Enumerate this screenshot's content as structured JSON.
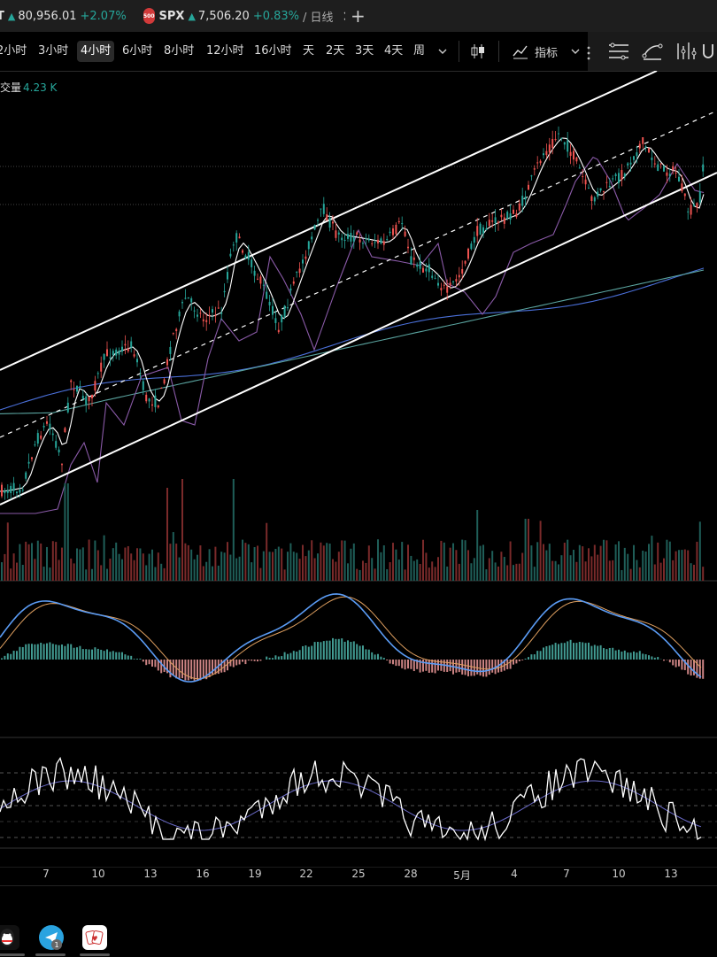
{
  "tabs": [
    {
      "symbol": "T",
      "price": "80,956.01",
      "change": "+2.07%"
    },
    {
      "badge": "500",
      "symbol": "SPX",
      "price": "7,506.20",
      "change": "+0.83%",
      "suffix": "/ 日线"
    }
  ],
  "timeframes": [
    "2小时",
    "3小时",
    "4小时",
    "6小时",
    "8小时",
    "12小时",
    "16小时",
    "天",
    "2天",
    "3天",
    "4天",
    "周"
  ],
  "active_timeframe": "4小时",
  "toolbar": {
    "indicators_label": "指标"
  },
  "volume": {
    "label": "交量",
    "value": "4.23 K"
  },
  "date_labels": [
    "7",
    "10",
    "13",
    "16",
    "19",
    "22",
    "25",
    "28",
    "5月",
    "4",
    "7",
    "10",
    "13"
  ],
  "colors": {
    "up": "#26a69a",
    "down": "#ef5350",
    "bg": "#000000",
    "channel": "#ffffff",
    "macd": "#5b9cf5",
    "signal": "#e0a060"
  },
  "taskbar": {
    "icons": [
      "qq-icon",
      "telegram-icon",
      "poker-icon"
    ],
    "telegram_badge": "1"
  }
}
